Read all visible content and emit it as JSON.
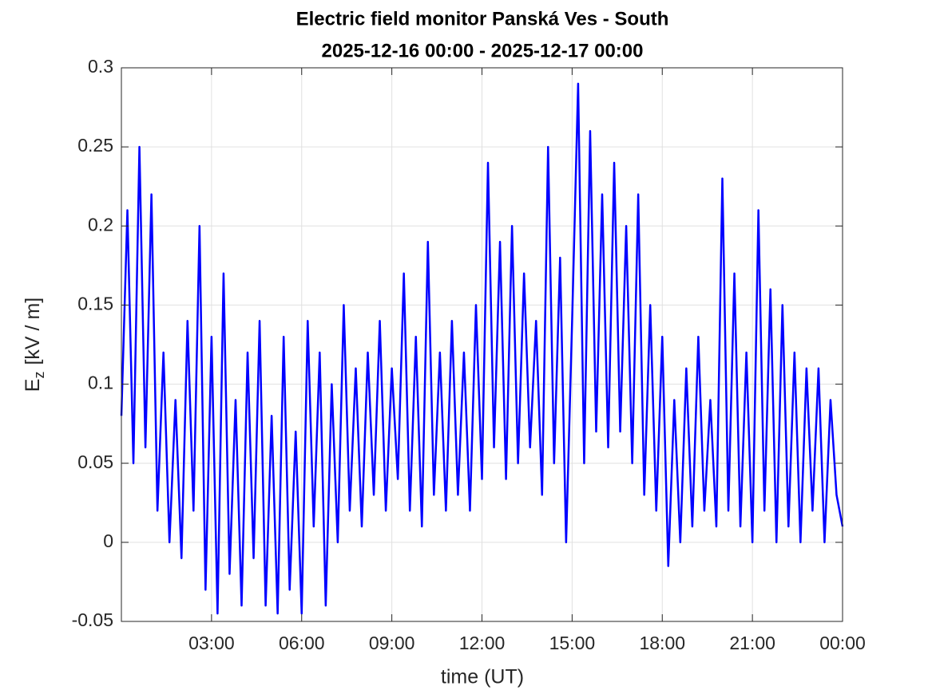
{
  "chart_data": {
    "type": "line",
    "title": [
      "Electric field monitor Panská Ves - South",
      "2025-12-16 00:00 - 2025-12-17 00:00"
    ],
    "xlabel": "time (UT)",
    "ylabel": {
      "main": "E",
      "sub": "z",
      "unit": "[kV / m]"
    },
    "x": [
      0,
      0.2,
      0.4,
      0.6,
      0.8,
      1,
      1.2,
      1.4,
      1.6,
      1.8,
      2,
      2.2,
      2.4,
      2.6,
      2.8,
      3,
      3.2,
      3.4,
      3.6,
      3.8,
      4,
      4.2,
      4.4,
      4.6,
      4.8,
      5,
      5.2,
      5.4,
      5.6,
      5.8,
      6,
      6.2,
      6.4,
      6.6,
      6.8,
      7,
      7.2,
      7.4,
      7.6,
      7.8,
      8,
      8.2,
      8.4,
      8.6,
      8.8,
      9,
      9.2,
      9.4,
      9.6,
      9.8,
      10,
      10.2,
      10.4,
      10.6,
      10.8,
      11,
      11.2,
      11.4,
      11.6,
      11.8,
      12,
      12.2,
      12.4,
      12.6,
      12.8,
      13,
      13.2,
      13.4,
      13.6,
      13.8,
      14,
      14.2,
      14.4,
      14.6,
      14.8,
      15,
      15.2,
      15.4,
      15.6,
      15.8,
      16,
      16.2,
      16.4,
      16.6,
      16.8,
      17,
      17.2,
      17.4,
      17.6,
      17.8,
      18,
      18.2,
      18.4,
      18.6,
      18.8,
      19,
      19.2,
      19.4,
      19.6,
      19.8,
      20,
      20.2,
      20.4,
      20.6,
      20.8,
      21,
      21.2,
      21.4,
      21.6,
      21.8,
      22,
      22.2,
      22.4,
      22.6,
      22.8,
      23,
      23.2,
      23.4,
      23.6,
      23.8,
      24
    ],
    "series": [
      {
        "color": "#0000ff",
        "values": [
          0.08,
          0.21,
          0.05,
          0.25,
          0.06,
          0.22,
          0.02,
          0.12,
          0.0,
          0.09,
          -0.01,
          0.14,
          0.02,
          0.2,
          -0.03,
          0.13,
          -0.045,
          0.17,
          -0.02,
          0.09,
          -0.04,
          0.12,
          -0.01,
          0.14,
          -0.04,
          0.08,
          -0.045,
          0.13,
          -0.03,
          0.07,
          -0.045,
          0.14,
          0.01,
          0.12,
          -0.04,
          0.1,
          0.0,
          0.15,
          0.02,
          0.11,
          0.01,
          0.12,
          0.03,
          0.14,
          0.02,
          0.11,
          0.04,
          0.17,
          0.02,
          0.13,
          0.01,
          0.19,
          0.03,
          0.12,
          0.02,
          0.14,
          0.03,
          0.12,
          0.02,
          0.15,
          0.04,
          0.24,
          0.06,
          0.19,
          0.04,
          0.2,
          0.05,
          0.17,
          0.06,
          0.14,
          0.03,
          0.25,
          0.05,
          0.18,
          0.0,
          0.14,
          0.29,
          0.05,
          0.26,
          0.07,
          0.22,
          0.06,
          0.24,
          0.07,
          0.2,
          0.05,
          0.22,
          0.03,
          0.15,
          0.02,
          0.13,
          -0.015,
          0.09,
          0.0,
          0.11,
          0.01,
          0.13,
          0.02,
          0.09,
          0.01,
          0.23,
          0.02,
          0.17,
          0.01,
          0.12,
          0.0,
          0.21,
          0.02,
          0.16,
          0.0,
          0.15,
          0.01,
          0.12,
          0.0,
          0.11,
          0.02,
          0.11,
          0.0,
          0.09,
          0.03,
          0.01
        ]
      }
    ],
    "xlim": [
      0,
      24
    ],
    "xticks": [
      {
        "value": 3,
        "label": "03:00"
      },
      {
        "value": 6,
        "label": "06:00"
      },
      {
        "value": 9,
        "label": "09:00"
      },
      {
        "value": 12,
        "label": "12:00"
      },
      {
        "value": 15,
        "label": "15:00"
      },
      {
        "value": 18,
        "label": "18:00"
      },
      {
        "value": 21,
        "label": "21:00"
      },
      {
        "value": 24,
        "label": "00:00"
      }
    ],
    "ylim": [
      -0.05,
      0.3
    ],
    "yticks": [
      -0.05,
      0,
      0.05,
      0.1,
      0.15,
      0.2,
      0.25,
      0.3
    ],
    "grid": true
  }
}
